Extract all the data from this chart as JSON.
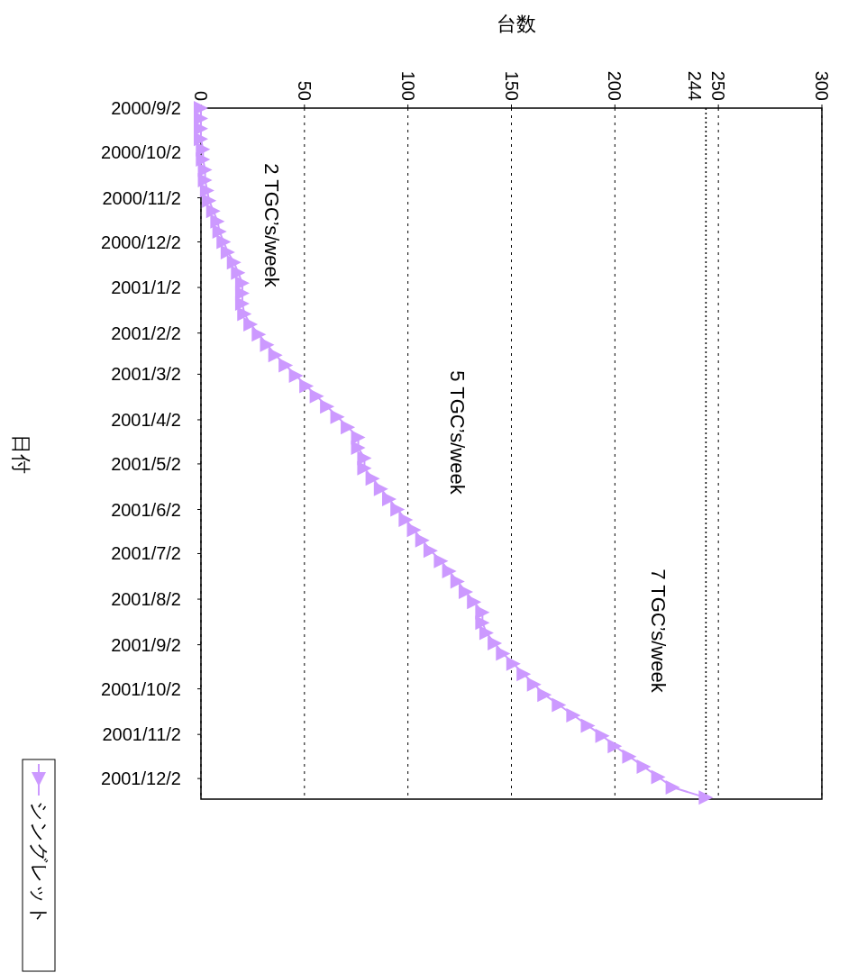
{
  "chart_data": {
    "type": "line",
    "orientation": "horizontal",
    "xlabel": "台数",
    "ylabel": "日付",
    "x": [
      "2000-09-02",
      "2000-09-09",
      "2000-09-16",
      "2000-09-23",
      "2000-09-30",
      "2000-10-07",
      "2000-10-14",
      "2000-10-21",
      "2000-10-28",
      "2000-11-04",
      "2000-11-11",
      "2000-11-18",
      "2000-11-25",
      "2000-12-02",
      "2000-12-09",
      "2000-12-16",
      "2000-12-23",
      "2000-12-30",
      "2001-01-06",
      "2001-01-13",
      "2001-01-20",
      "2001-01-27",
      "2001-02-03",
      "2001-02-10",
      "2001-02-17",
      "2001-02-24",
      "2001-03-03",
      "2001-03-10",
      "2001-03-17",
      "2001-03-24",
      "2001-03-31",
      "2001-04-07",
      "2001-04-14",
      "2001-04-21",
      "2001-04-28",
      "2001-05-05",
      "2001-05-12",
      "2001-05-19",
      "2001-05-26",
      "2001-06-02",
      "2001-06-09",
      "2001-06-16",
      "2001-06-23",
      "2001-06-30",
      "2001-07-07",
      "2001-07-14",
      "2001-07-21",
      "2001-07-28",
      "2001-08-04",
      "2001-08-11",
      "2001-08-18",
      "2001-08-25",
      "2001-09-01",
      "2001-09-08",
      "2001-09-15",
      "2001-09-22",
      "2001-09-29",
      "2001-10-06",
      "2001-10-13",
      "2001-10-20",
      "2001-10-27",
      "2001-11-03",
      "2001-11-10",
      "2001-11-17",
      "2001-11-24",
      "2001-12-01",
      "2001-12-08",
      "2001-12-15"
    ],
    "series": [
      {
        "name": "シングレット",
        "color": "#cc99ff",
        "values": [
          0,
          0,
          0,
          0,
          1,
          1,
          2,
          2,
          3,
          4,
          6,
          8,
          9,
          11,
          13,
          16,
          18,
          20,
          20,
          20,
          21,
          24,
          28,
          32,
          36,
          41,
          46,
          51,
          56,
          61,
          66,
          71,
          76,
          76,
          79,
          79,
          83,
          87,
          91,
          95,
          99,
          103,
          107,
          111,
          116,
          120,
          124,
          128,
          132,
          136,
          136,
          138,
          142,
          146,
          151,
          156,
          161,
          166,
          173,
          180,
          187,
          194,
          200,
          207,
          214,
          221,
          228,
          244
        ]
      }
    ],
    "ylim": [
      "2001-12-16",
      "2000-09-02"
    ],
    "yticks": [
      {
        "value": "2000-09-02",
        "label": "2000/9/2"
      },
      {
        "value": "2000-10-02",
        "label": "2000/10/2"
      },
      {
        "value": "2000-11-02",
        "label": "2000/11/2"
      },
      {
        "value": "2000-12-02",
        "label": "2000/12/2"
      },
      {
        "value": "2001-01-02",
        "label": "2001/1/2"
      },
      {
        "value": "2001-02-02",
        "label": "2001/2/2"
      },
      {
        "value": "2001-03-02",
        "label": "2001/3/2"
      },
      {
        "value": "2001-04-02",
        "label": "2001/4/2"
      },
      {
        "value": "2001-05-02",
        "label": "2001/5/2"
      },
      {
        "value": "2001-06-02",
        "label": "2001/6/2"
      },
      {
        "value": "2001-07-02",
        "label": "2001/7/2"
      },
      {
        "value": "2001-08-02",
        "label": "2001/8/2"
      },
      {
        "value": "2001-09-02",
        "label": "2001/9/2"
      },
      {
        "value": "2001-10-02",
        "label": "2001/10/2"
      },
      {
        "value": "2001-11-02",
        "label": "2001/11/2"
      },
      {
        "value": "2001-12-02",
        "label": "2001/12/2"
      }
    ],
    "xlim": [
      0,
      300
    ],
    "xticks": [
      0,
      50,
      100,
      150,
      200,
      250,
      300
    ],
    "ref_lines": [
      {
        "axis": "x",
        "value": 244,
        "label": "244",
        "line_style": "dotted",
        "color": "#000000"
      }
    ],
    "annotations": [
      "2 TGC’s/week",
      "5 TGC’s/week",
      "7 TGC’s/week"
    ],
    "grid": "x",
    "legend": "bottom left",
    "marker": "triangle",
    "line_style": "solid"
  }
}
